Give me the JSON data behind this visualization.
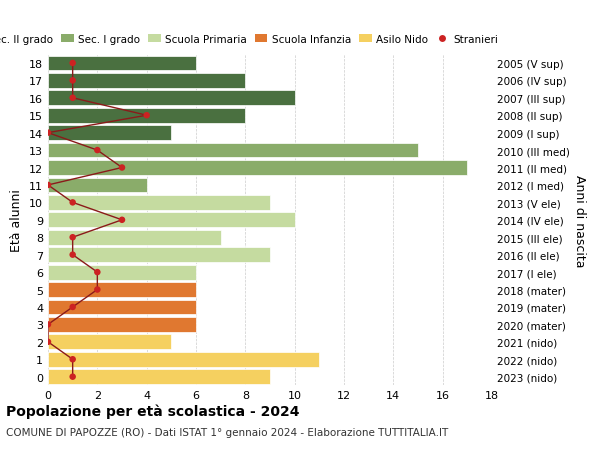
{
  "ages": [
    18,
    17,
    16,
    15,
    14,
    13,
    12,
    11,
    10,
    9,
    8,
    7,
    6,
    5,
    4,
    3,
    2,
    1,
    0
  ],
  "bar_values": [
    6,
    8,
    10,
    8,
    5,
    15,
    17,
    4,
    9,
    10,
    7,
    9,
    6,
    6,
    6,
    6,
    5,
    11,
    9
  ],
  "bar_colors": [
    "#4a7040",
    "#4a7040",
    "#4a7040",
    "#4a7040",
    "#4a7040",
    "#8aac6a",
    "#8aac6a",
    "#8aac6a",
    "#c5dba0",
    "#c5dba0",
    "#c5dba0",
    "#c5dba0",
    "#c5dba0",
    "#e07830",
    "#e07830",
    "#e07830",
    "#f5d060",
    "#f5d060",
    "#f5d060"
  ],
  "stranieri_values": [
    1,
    1,
    1,
    4,
    0,
    2,
    3,
    0,
    1,
    3,
    1,
    1,
    2,
    2,
    1,
    0,
    0,
    1,
    1
  ],
  "right_labels": [
    "2005 (V sup)",
    "2006 (IV sup)",
    "2007 (III sup)",
    "2008 (II sup)",
    "2009 (I sup)",
    "2010 (III med)",
    "2011 (II med)",
    "2012 (I med)",
    "2013 (V ele)",
    "2014 (IV ele)",
    "2015 (III ele)",
    "2016 (II ele)",
    "2017 (I ele)",
    "2018 (mater)",
    "2019 (mater)",
    "2020 (mater)",
    "2021 (nido)",
    "2022 (nido)",
    "2023 (nido)"
  ],
  "legend_labels": [
    "Sec. II grado",
    "Sec. I grado",
    "Scuola Primaria",
    "Scuola Infanzia",
    "Asilo Nido",
    "Stranieri"
  ],
  "legend_colors": [
    "#4a7040",
    "#8aac6a",
    "#c5dba0",
    "#e07830",
    "#f5d060",
    "#cc2222"
  ],
  "ylabel_left": "Età alunni",
  "ylabel_right": "Anni di nascita",
  "title": "Popolazione per età scolastica - 2024",
  "subtitle": "COMUNE DI PAPOZZE (RO) - Dati ISTAT 1° gennaio 2024 - Elaborazione TUTTITALIA.IT",
  "xlim": [
    0,
    18
  ],
  "stranieri_color": "#cc2222",
  "stranieri_line_color": "#8b1a1a",
  "bg_color": "#ffffff",
  "grid_color": "#cccccc"
}
